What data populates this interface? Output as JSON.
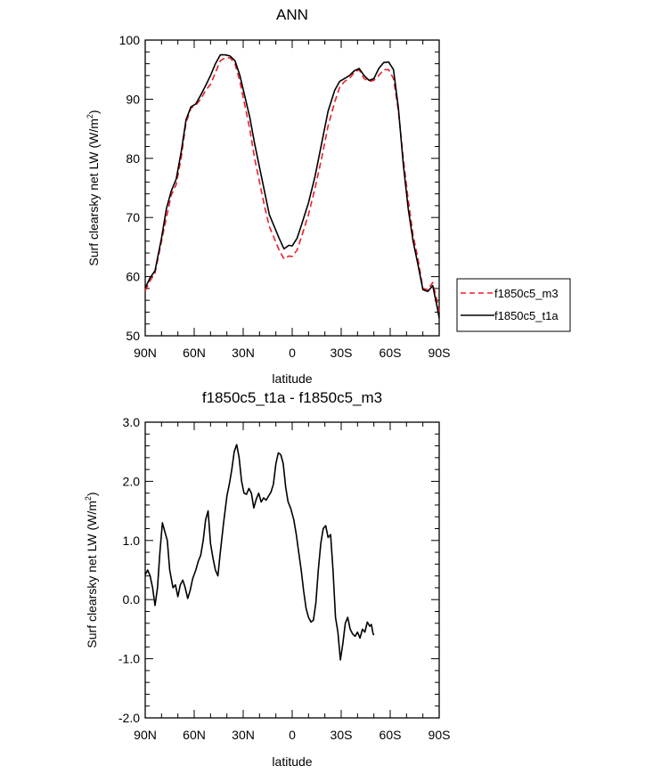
{
  "chart_data": [
    {
      "type": "line",
      "title": "ANN",
      "xlabel": "latitude",
      "ylabel": "Surf clearsky net LW (W/m",
      "ylabel_sup": "2",
      "ylabel_close": ")",
      "xlim": [
        90,
        -90
      ],
      "ylim": [
        50,
        100
      ],
      "xticks": [
        {
          "value": 90,
          "label": "90N"
        },
        {
          "value": 60,
          "label": "60N"
        },
        {
          "value": 30,
          "label": "30N"
        },
        {
          "value": 0,
          "label": "0"
        },
        {
          "value": -30,
          "label": "30S"
        },
        {
          "value": -60,
          "label": "60S"
        },
        {
          "value": -90,
          "label": "90S"
        }
      ],
      "yticks": [
        {
          "value": 100,
          "label": "100"
        },
        {
          "value": 90,
          "label": "90"
        },
        {
          "value": 80,
          "label": "80"
        },
        {
          "value": 70,
          "label": "70"
        },
        {
          "value": 60,
          "label": "60"
        },
        {
          "value": 50,
          "label": "50"
        }
      ],
      "legend_position": "right",
      "series": [
        {
          "name": "f1850c5_m3",
          "color": "#e8202a",
          "dash": "dashed",
          "points": [
            [
              90,
              57.6
            ],
            [
              87,
              59.3
            ],
            [
              84,
              60.6
            ],
            [
              80,
              66.0
            ],
            [
              77,
              70.0
            ],
            [
              74,
              73.8
            ],
            [
              71,
              75.6
            ],
            [
              68,
              80.0
            ],
            [
              65,
              86.0
            ],
            [
              62,
              88.5
            ],
            [
              59,
              89.0
            ],
            [
              56,
              90.0
            ],
            [
              53,
              91.5
            ],
            [
              50,
              92.5
            ],
            [
              47,
              94.5
            ],
            [
              44,
              96.5
            ],
            [
              41,
              97.0
            ],
            [
              38,
              97.0
            ],
            [
              35,
              96.0
            ],
            [
              32,
              93.0
            ],
            [
              29,
              89.0
            ],
            [
              26,
              85.0
            ],
            [
              23,
              80.0
            ],
            [
              20,
              76.0
            ],
            [
              17,
              72.0
            ],
            [
              14,
              68.5
            ],
            [
              11,
              66.5
            ],
            [
              8,
              64.5
            ],
            [
              5,
              63.0
            ],
            [
              2,
              63.5
            ],
            [
              0,
              63.4
            ],
            [
              -3,
              64.5
            ],
            [
              -6,
              67.0
            ],
            [
              -10,
              70.5
            ],
            [
              -14,
              75.0
            ],
            [
              -18,
              80.0
            ],
            [
              -22,
              85.5
            ],
            [
              -26,
              89.5
            ],
            [
              -29,
              92.0
            ],
            [
              -32,
              93.0
            ],
            [
              -35,
              93.5
            ],
            [
              -38,
              94.5
            ],
            [
              -41,
              95.0
            ],
            [
              -44,
              93.5
            ],
            [
              -47,
              93.0
            ],
            [
              -50,
              93.2
            ],
            [
              -53,
              94.0
            ],
            [
              -56,
              95.0
            ],
            [
              -59,
              95.0
            ],
            [
              -62,
              93.5
            ],
            [
              -65,
              88.0
            ],
            [
              -68,
              80.0
            ],
            [
              -71,
              73.0
            ],
            [
              -74,
              67.0
            ],
            [
              -77,
              63.0
            ],
            [
              -80,
              58.0
            ],
            [
              -83,
              57.8
            ],
            [
              -86,
              59.0
            ],
            [
              -89,
              55.5
            ],
            [
              -90,
              54.0
            ]
          ]
        },
        {
          "name": "f1850c5_t1a",
          "color": "#000000",
          "dash": "solid",
          "points": [
            [
              90,
              58.1
            ],
            [
              87,
              59.8
            ],
            [
              84,
              61.0
            ],
            [
              80,
              66.5
            ],
            [
              77,
              71.5
            ],
            [
              74,
              74.5
            ],
            [
              71,
              76.5
            ],
            [
              68,
              81.0
            ],
            [
              65,
              86.5
            ],
            [
              62,
              88.7
            ],
            [
              59,
              89.2
            ],
            [
              56,
              90.7
            ],
            [
              53,
              92.3
            ],
            [
              50,
              94.0
            ],
            [
              47,
              96.0
            ],
            [
              44,
              97.5
            ],
            [
              41,
              97.5
            ],
            [
              38,
              97.3
            ],
            [
              35,
              96.5
            ],
            [
              32,
              94.0
            ],
            [
              29,
              90.5
            ],
            [
              26,
              87.0
            ],
            [
              23,
              82.5
            ],
            [
              20,
              78.5
            ],
            [
              17,
              74.5
            ],
            [
              14,
              70.5
            ],
            [
              11,
              68.5
            ],
            [
              8,
              66.5
            ],
            [
              5,
              64.7
            ],
            [
              2,
              65.3
            ],
            [
              0,
              65.2
            ],
            [
              -3,
              66.5
            ],
            [
              -6,
              69.0
            ],
            [
              -10,
              72.5
            ],
            [
              -14,
              77.0
            ],
            [
              -18,
              82.5
            ],
            [
              -22,
              88.0
            ],
            [
              -26,
              91.5
            ],
            [
              -29,
              93.0
            ],
            [
              -32,
              93.5
            ],
            [
              -35,
              94.0
            ],
            [
              -38,
              94.8
            ],
            [
              -41,
              95.2
            ],
            [
              -44,
              94.0
            ],
            [
              -47,
              93.2
            ],
            [
              -50,
              93.5
            ],
            [
              -53,
              95.2
            ],
            [
              -56,
              96.2
            ],
            [
              -59,
              96.3
            ],
            [
              -62,
              95.0
            ],
            [
              -65,
              88.5
            ],
            [
              -68,
              79.0
            ],
            [
              -71,
              71.5
            ],
            [
              -74,
              66.0
            ],
            [
              -77,
              62.0
            ],
            [
              -80,
              57.8
            ],
            [
              -83,
              57.5
            ],
            [
              -86,
              58.5
            ],
            [
              -89,
              54.5
            ],
            [
              -90,
              53.0
            ]
          ]
        }
      ]
    },
    {
      "type": "line",
      "title": "f1850c5_t1a - f1850c5_m3",
      "xlabel": "latitude",
      "ylabel": "Surf clearsky net LW (W/m",
      "ylabel_sup": "2",
      "ylabel_close": ")",
      "xlim": [
        90,
        -90
      ],
      "ylim": [
        -2.0,
        3.0
      ],
      "xticks": [
        {
          "value": 90,
          "label": "90N"
        },
        {
          "value": 60,
          "label": "60N"
        },
        {
          "value": 30,
          "label": "30N"
        },
        {
          "value": 0,
          "label": "0"
        },
        {
          "value": -30,
          "label": "30S"
        },
        {
          "value": -60,
          "label": "60S"
        },
        {
          "value": -90,
          "label": "90S"
        }
      ],
      "yticks": [
        {
          "value": 3.0,
          "label": "3.0"
        },
        {
          "value": 2.0,
          "label": "2.0"
        },
        {
          "value": 1.0,
          "label": "1.0"
        },
        {
          "value": 0.0,
          "label": "0.0"
        },
        {
          "value": -1.0,
          "label": "-1.0"
        },
        {
          "value": -2.0,
          "label": "-2.0"
        }
      ],
      "series": [
        {
          "color": "#000000",
          "dash": "solid",
          "points": [
            [
              90,
              0.42
            ],
            [
              88.5,
              0.5
            ],
            [
              87,
              0.4
            ],
            [
              85.5,
              0.2
            ],
            [
              84,
              -0.1
            ],
            [
              82.5,
              0.2
            ],
            [
              81,
              0.8
            ],
            [
              79.5,
              1.3
            ],
            [
              78,
              1.15
            ],
            [
              76.5,
              1.0
            ],
            [
              75,
              0.5
            ],
            [
              73,
              0.2
            ],
            [
              71.5,
              0.25
            ],
            [
              70,
              0.05
            ],
            [
              68.5,
              0.25
            ],
            [
              67,
              0.33
            ],
            [
              65.5,
              0.2
            ],
            [
              64,
              0.02
            ],
            [
              62.5,
              0.15
            ],
            [
              61,
              0.35
            ],
            [
              59,
              0.5
            ],
            [
              57.5,
              0.65
            ],
            [
              56,
              0.75
            ],
            [
              54.5,
              1.0
            ],
            [
              53,
              1.35
            ],
            [
              51.5,
              1.5
            ],
            [
              50,
              0.95
            ],
            [
              48.5,
              0.7
            ],
            [
              47,
              0.5
            ],
            [
              45.5,
              0.4
            ],
            [
              44,
              0.8
            ],
            [
              42,
              1.3
            ],
            [
              40,
              1.75
            ],
            [
              38.5,
              1.95
            ],
            [
              37,
              2.2
            ],
            [
              35.5,
              2.5
            ],
            [
              34,
              2.62
            ],
            [
              32.5,
              2.4
            ],
            [
              31,
              2.0
            ],
            [
              29.5,
              1.8
            ],
            [
              28,
              1.78
            ],
            [
              26.5,
              1.88
            ],
            [
              25,
              1.8
            ],
            [
              23.5,
              1.55
            ],
            [
              22,
              1.7
            ],
            [
              20.5,
              1.8
            ],
            [
              19,
              1.65
            ],
            [
              17.5,
              1.72
            ],
            [
              16,
              1.68
            ],
            [
              14.5,
              1.75
            ],
            [
              13,
              1.82
            ],
            [
              11.5,
              1.95
            ],
            [
              10,
              2.3
            ],
            [
              8.5,
              2.48
            ],
            [
              7,
              2.45
            ],
            [
              5.5,
              2.3
            ],
            [
              4,
              1.9
            ],
            [
              2.5,
              1.65
            ],
            [
              1,
              1.55
            ],
            [
              -1,
              1.35
            ],
            [
              -2.5,
              1.1
            ],
            [
              -4,
              0.8
            ],
            [
              -5.5,
              0.5
            ],
            [
              -7,
              0.15
            ],
            [
              -8.5,
              -0.15
            ],
            [
              -10,
              -0.3
            ],
            [
              -11.5,
              -0.38
            ],
            [
              -13,
              -0.35
            ],
            [
              -14.5,
              -0.05
            ],
            [
              -16,
              0.5
            ],
            [
              -17.5,
              0.95
            ],
            [
              -19,
              1.2
            ],
            [
              -20.5,
              1.25
            ],
            [
              -22,
              1.05
            ],
            [
              -23.5,
              1.1
            ],
            [
              -25,
              0.5
            ],
            [
              -26.5,
              -0.3
            ],
            [
              -28,
              -0.55
            ],
            [
              -29.5,
              -1.02
            ],
            [
              -31,
              -0.75
            ],
            [
              -32.5,
              -0.4
            ],
            [
              -34,
              -0.3
            ],
            [
              -35.5,
              -0.5
            ],
            [
              -37,
              -0.58
            ],
            [
              -38.5,
              -0.62
            ],
            [
              -40,
              -0.55
            ],
            [
              -41.5,
              -0.65
            ],
            [
              -43,
              -0.5
            ],
            [
              -44.5,
              -0.55
            ],
            [
              -46,
              -0.38
            ],
            [
              -47.5,
              -0.45
            ],
            [
              -48.5,
              -0.42
            ],
            [
              -49.5,
              -0.58
            ],
            [
              -50,
              -0.6
            ]
          ]
        }
      ]
    }
  ]
}
